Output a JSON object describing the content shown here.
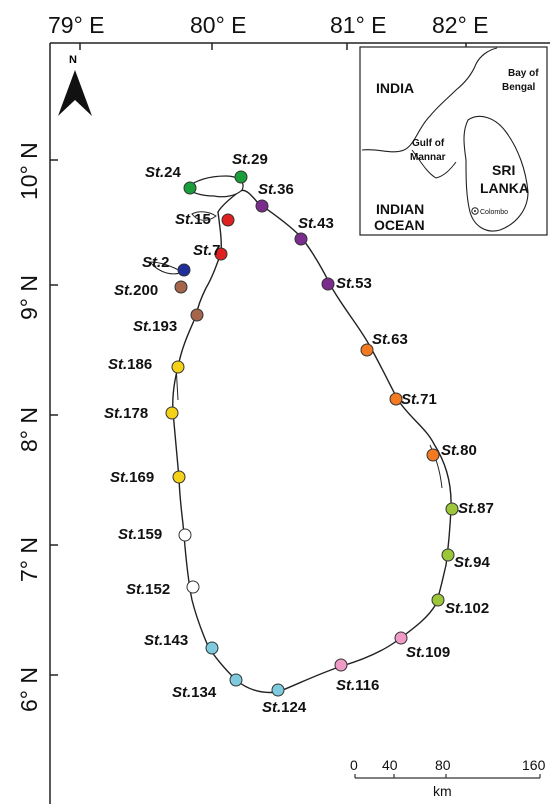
{
  "map": {
    "longitude_labels": [
      "79° E",
      "80° E",
      "81° E",
      "82° E"
    ],
    "latitude_labels": [
      "10° N",
      "9° N",
      "8° N",
      "7° N",
      "6° N"
    ],
    "north_label": "N",
    "inset": {
      "labels": {
        "india": "INDIA",
        "bay_of_bengal_1": "Bay of",
        "bay_of_bengal_2": "Bengal",
        "gulf_of_mannar_1": "Gulf of",
        "gulf_of_mannar_2": "Mannar",
        "sri_lanka_1": "SRI",
        "sri_lanka_2": "LANKA",
        "indian_ocean_1": "INDIAN",
        "indian_ocean_2": "OCEAN",
        "colombo": "Colombo"
      }
    },
    "scale_bar": {
      "ticks": [
        "0",
        "40",
        "80",
        "160"
      ],
      "unit": "km"
    },
    "station_prefix": "St.",
    "stations": [
      {
        "id": "24",
        "color": "#1a9e3a"
      },
      {
        "id": "29",
        "color": "#1a9e3a"
      },
      {
        "id": "36",
        "color": "#7b2d8e"
      },
      {
        "id": "43",
        "color": "#7b2d8e"
      },
      {
        "id": "15",
        "color": "#e0201e"
      },
      {
        "id": "7",
        "color": "#e0201e"
      },
      {
        "id": "2",
        "color": "#1f2f9c"
      },
      {
        "id": "200",
        "color": "#a5654a"
      },
      {
        "id": "53",
        "color": "#7b2d8e"
      },
      {
        "id": "193",
        "color": "#a5654a"
      },
      {
        "id": "63",
        "color": "#f47a21"
      },
      {
        "id": "186",
        "color": "#f5d21a"
      },
      {
        "id": "71",
        "color": "#f47a21"
      },
      {
        "id": "178",
        "color": "#f5d21a"
      },
      {
        "id": "80",
        "color": "#f47a21"
      },
      {
        "id": "169",
        "color": "#f5d21a"
      },
      {
        "id": "87",
        "color": "#9cc73b"
      },
      {
        "id": "159",
        "color": "#ffffff"
      },
      {
        "id": "94",
        "color": "#9cc73b"
      },
      {
        "id": "152",
        "color": "#ffffff"
      },
      {
        "id": "102",
        "color": "#9cc73b"
      },
      {
        "id": "143",
        "color": "#7ecbe0"
      },
      {
        "id": "109",
        "color": "#f09ac6"
      },
      {
        "id": "116",
        "color": "#f09ac6"
      },
      {
        "id": "134",
        "color": "#7ecbe0"
      },
      {
        "id": "124",
        "color": "#7ecbe0"
      }
    ]
  }
}
